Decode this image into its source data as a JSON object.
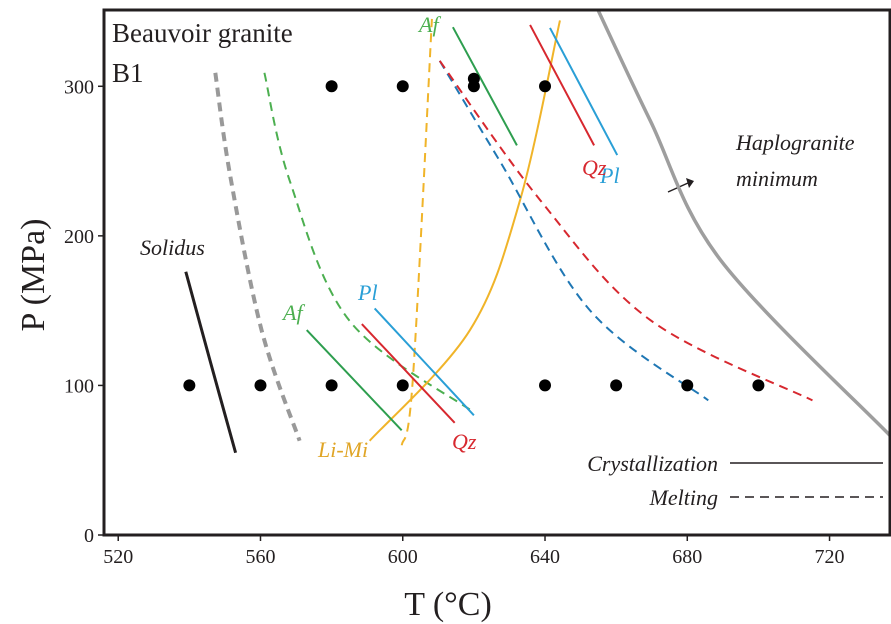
{
  "chart_data": {
    "type": "phase-diagram",
    "title": "Beauvoir granite",
    "subtitle": "B1",
    "x_label": "T (°C)",
    "y_label": "P (MPa)",
    "xlim": [
      516,
      737
    ],
    "ylim": [
      0,
      351
    ],
    "xticks": [
      520,
      560,
      600,
      640,
      680,
      720
    ],
    "yticks": [
      0,
      100,
      200,
      300
    ],
    "points": {
      "color": "#000000",
      "x": [
        540,
        560,
        580,
        600,
        640,
        660,
        680,
        700,
        580,
        600,
        620,
        620,
        640
      ],
      "y": [
        100,
        100,
        100,
        100,
        100,
        100,
        100,
        100,
        300,
        300,
        300,
        305,
        300
      ]
    },
    "lines": [
      {
        "color": "#231f20",
        "style": "solid",
        "x": [
          539,
          546,
          553
        ],
        "y": [
          176,
          115,
          55
        ]
      },
      {
        "color": "#999999",
        "style": "dashed",
        "x": [
          547.3,
          551.5,
          560.3,
          571
        ],
        "y": [
          309,
          240,
          137,
          63
        ]
      },
      {
        "color": "#4caf50",
        "style": "dashed",
        "x": [
          561.1,
          568.2,
          585.1,
          620
        ],
        "y": [
          309,
          237,
          143,
          82
        ]
      },
      {
        "color": "#f0b429",
        "style": "dashed",
        "x": [
          599.7,
          602.8,
          608.2
        ],
        "y": [
          60,
          103,
          345
        ]
      },
      {
        "color": "#f0b429",
        "style": "solid",
        "x": [
          590.7,
          618.9,
          633,
          644.2
        ],
        "y": [
          63,
          137,
          224,
          344
        ]
      },
      {
        "color": "#2e9e4f",
        "style": "solid",
        "x": [
          573,
          599.7
        ],
        "y": [
          137,
          70
        ]
      },
      {
        "color": "#d7282f",
        "style": "solid",
        "x": [
          588.5,
          614.6
        ],
        "y": [
          141,
          75
        ]
      },
      {
        "color": "#2a9fd6",
        "style": "solid",
        "x": [
          592.1,
          620
        ],
        "y": [
          151.5,
          80
        ]
      },
      {
        "color": "#2e9e4f",
        "style": "solid",
        "x": [
          614.1,
          632.1
        ],
        "y": [
          339.5,
          260.5
        ]
      },
      {
        "color": "#d7282f",
        "style": "solid",
        "x": [
          635.8,
          653.8
        ],
        "y": [
          341,
          260.5
        ]
      },
      {
        "color": "#2a9fd6",
        "style": "solid",
        "x": [
          641.4,
          660.3
        ],
        "y": [
          339,
          254
        ]
      },
      {
        "color": "#1f77b4",
        "style": "dashed",
        "x": [
          610.4,
          627.3,
          652.7,
          685.9
        ],
        "y": [
          317,
          250,
          150,
          90
        ]
      },
      {
        "color": "#d7282f",
        "style": "dashed",
        "x": [
          610.4,
          638.6,
          669.6,
          715.2
        ],
        "y": [
          317,
          224,
          143.7,
          90
        ]
      },
      {
        "color": "#9e9e9e",
        "style": "solid",
        "x": [
          654.9,
          669.6,
          689.3,
          737
        ],
        "y": [
          351,
          277,
          184,
          66.5
        ]
      }
    ],
    "annotations": [
      {
        "text": "Solidus",
        "color": "#231f20"
      },
      {
        "text": "Af",
        "color": "#4caf50"
      },
      {
        "text": "Af",
        "color": "#4caf50"
      },
      {
        "text": "Pl",
        "color": "#2a9fd6"
      },
      {
        "text": "Pl",
        "color": "#2a9fd6"
      },
      {
        "text": "Qz",
        "color": "#d7282f"
      },
      {
        "text": "Qz",
        "color": "#d7282f"
      },
      {
        "text": "Li-Mi",
        "color": "#e0a526"
      },
      {
        "text": "Haplogranite",
        "color": "#231f20"
      },
      {
        "text": "minimum",
        "color": "#231f20"
      }
    ],
    "legend": [
      {
        "name": "Crystallization",
        "style": "solid"
      },
      {
        "name": "Melting",
        "style": "dashed"
      }
    ]
  }
}
